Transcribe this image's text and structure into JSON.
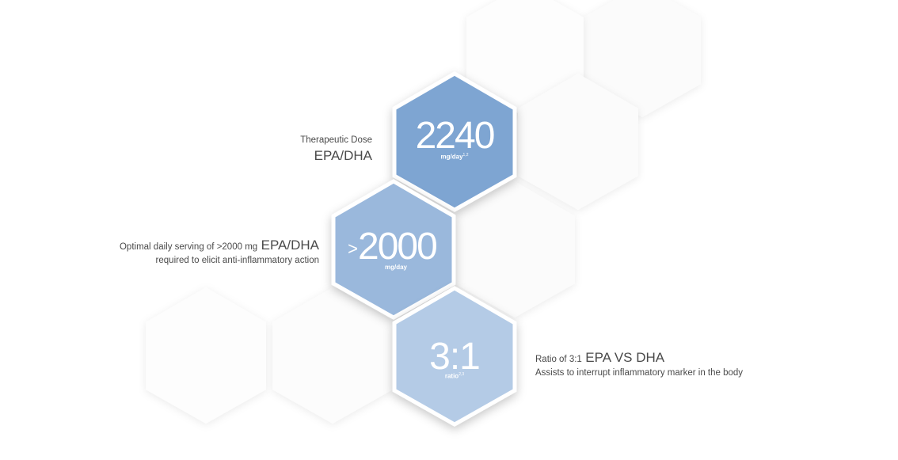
{
  "colors": {
    "hex_dark": "#7ea5d2",
    "hex_mid": "#9ab8dc",
    "hex_light": "#b4cbe6",
    "hex_ghost": "#fbfbfb",
    "text": "#4a4a4a"
  },
  "dose": {
    "label": "Therapeutic Dose",
    "product": "EPA/DHA",
    "value": "2240",
    "unit": "mg/day",
    "unit_ref": "1,2"
  },
  "serving": {
    "prefix": ">",
    "value": "2000",
    "unit": "mg/day",
    "line1_small": "Optimal daily serving of >2000 mg",
    "line1_large": "EPA/DHA",
    "line2": "required to elicit anti-inflammatory action"
  },
  "ratio": {
    "value": "3:1",
    "unit": "ratio",
    "unit_ref": "2,3",
    "line1_small": "Ratio of 3:1",
    "line1_large": "EPA VS DHA",
    "line2": "Assists to interrupt inflammatory marker in the body"
  }
}
